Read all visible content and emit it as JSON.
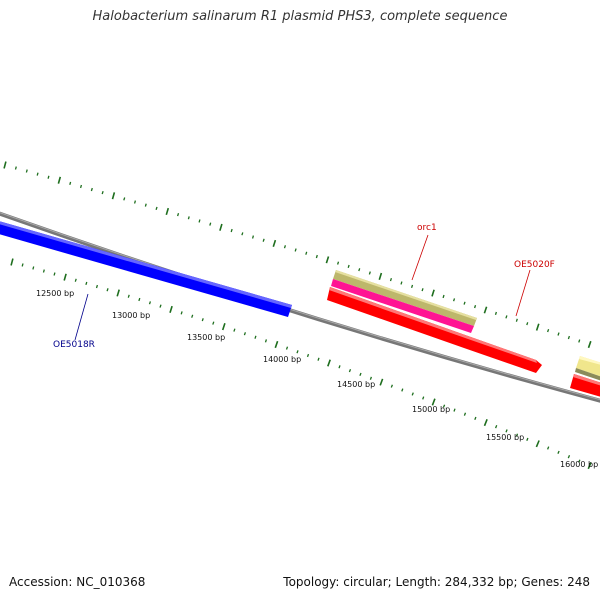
{
  "title": "Halobacterium salinarum R1 plasmid PHS3, complete sequence",
  "footer": {
    "accession": "Accession: NC_010368",
    "summary": "Topology: circular; Length: 284,332 bp; Genes: 248"
  },
  "scale": {
    "tick_labels": [
      "12500 bp",
      "13000 bp",
      "13500 bp",
      "14000 bp",
      "14500 bp",
      "15000 bp",
      "15500 bp",
      "16000 bp"
    ],
    "tick_color": "#1e6e1e"
  },
  "genes": [
    {
      "name": "OE5018R",
      "label_color": "#00008b",
      "color": "#0000ff",
      "strand": "reverse"
    },
    {
      "name": "orc1",
      "label_color": "#cc0000",
      "color": "#bdb76b",
      "strand": "forward"
    },
    {
      "name": "OE5020F",
      "label_color": "#cc0000",
      "color": "#ff0000",
      "strand": "forward"
    }
  ],
  "colors": {
    "backbone": "#808080",
    "forward_gene": "#ff0000",
    "reverse_gene": "#0000ff",
    "misc_feature": "#ff1493",
    "pale_feature": "#f0e68c"
  }
}
